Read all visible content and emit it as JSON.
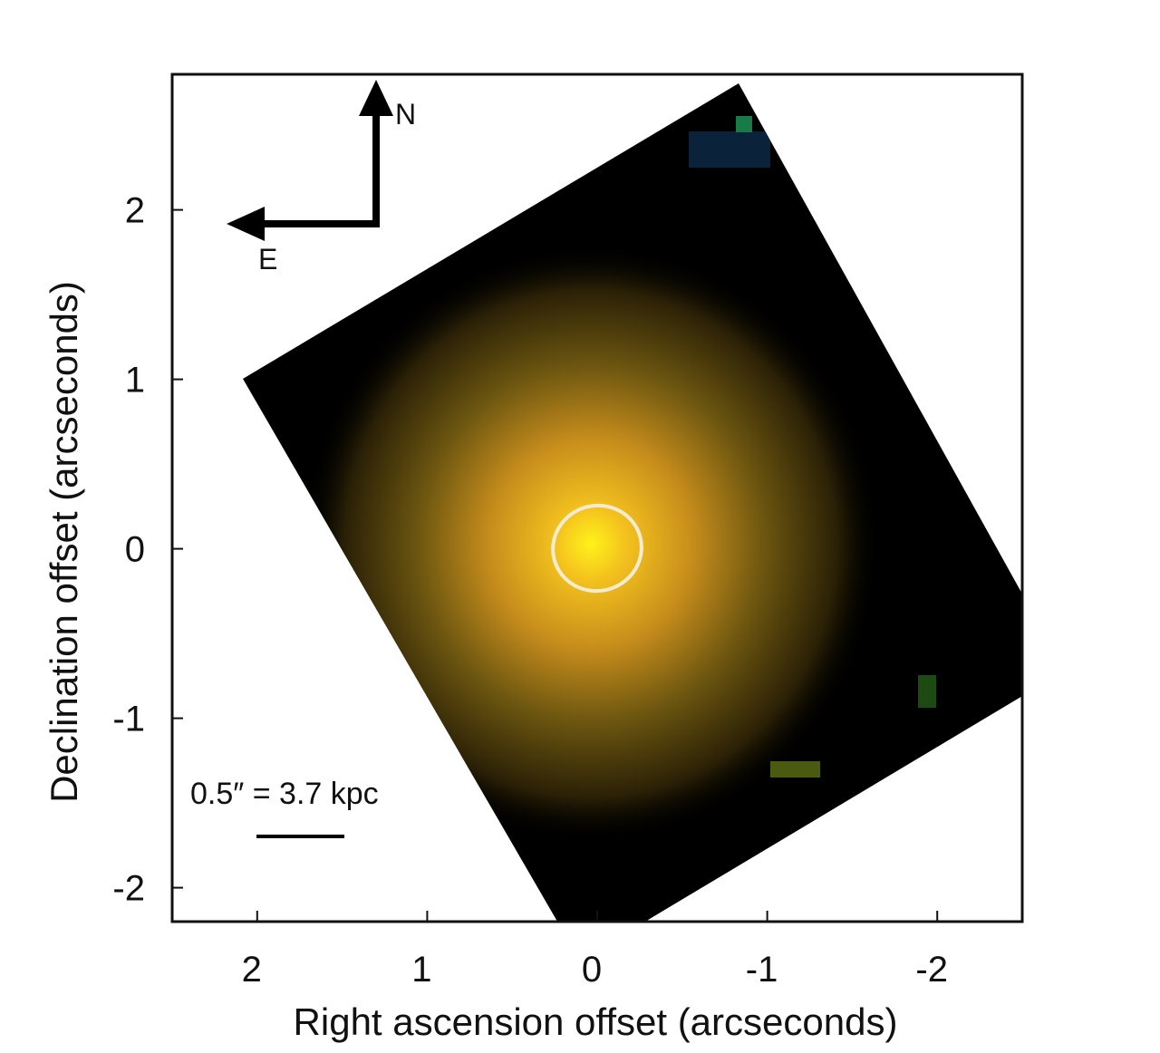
{
  "chart_data": {
    "type": "image",
    "xlabel": "Right ascension offset (arcseconds)",
    "ylabel": "Declination offset (arcseconds)",
    "xlim": [
      2.5,
      -2.5
    ],
    "ylim": [
      -2.2,
      2.8
    ],
    "x_ticks": [
      2,
      1,
      0,
      -1,
      -2
    ],
    "x_tick_labels": [
      "2",
      "1",
      "0",
      "-1",
      "-2"
    ],
    "y_ticks": [
      2,
      1,
      0,
      -1,
      -2
    ],
    "y_tick_labels": [
      "2",
      "1",
      "0",
      "-1",
      "-2"
    ],
    "grid": false,
    "compass": {
      "north_label": "N",
      "east_label": "E"
    },
    "scale_bar": {
      "label": "0.5″ = 3.7 kpc",
      "length_arcsec": 0.5
    },
    "marker": {
      "shape": "ellipse",
      "center": [
        0,
        0
      ],
      "color": "#f3ecd0"
    },
    "colors": {
      "background": "#000000",
      "core": "#fff21a",
      "halo": "#d9a11c",
      "outer": "#5a4a10"
    }
  }
}
